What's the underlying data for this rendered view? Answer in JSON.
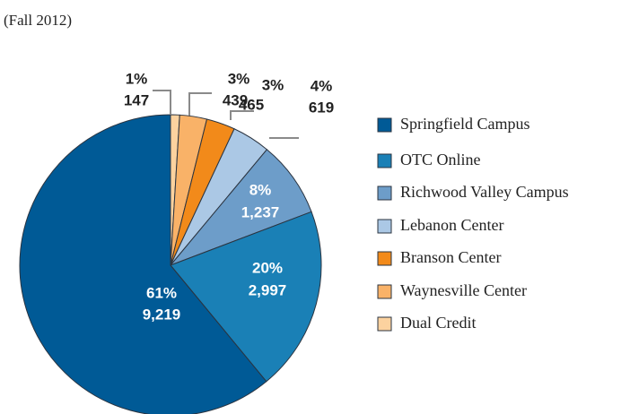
{
  "chart_data": {
    "type": "pie",
    "subtitle": "(Fall 2012)",
    "categories": [
      "Springfield Campus",
      "OTC Online",
      "Richwood Valley Campus",
      "Lebanon Center",
      "Branson Center",
      "Waynesville Center",
      "Dual Credit"
    ],
    "values": [
      9219,
      2997,
      1237,
      619,
      465,
      439,
      147
    ],
    "value_labels": [
      "9,219",
      "2,997",
      "1,237",
      "619",
      "465",
      "439",
      "147"
    ],
    "percent_labels": [
      "61%",
      "20%",
      "8%",
      "4%",
      "3%",
      "3%",
      "1%"
    ],
    "colors": [
      "#005a96",
      "#1a80b6",
      "#6d9dc9",
      "#abc8e5",
      "#f28a1a",
      "#f9b268",
      "#fcd29f"
    ],
    "legend": "right"
  }
}
